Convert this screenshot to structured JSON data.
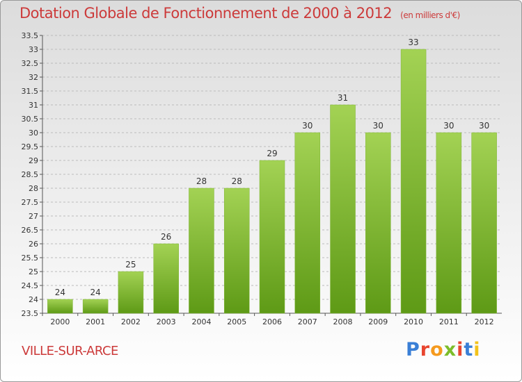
{
  "title": "Dotation Globale de Fonctionnement de 2000 à 2012",
  "subtitle": "(en milliers d'€)",
  "commune": "VILLE-SUR-ARCE",
  "logo": {
    "text": "Proxiti",
    "letter_colors": [
      "#3a7fd6",
      "#e8452f",
      "#f59a1e",
      "#7cbd2a",
      "#e8452f",
      "#3a7fd6",
      "#f2c21b"
    ]
  },
  "colors": {
    "title": "#cc3a3a",
    "bar_top": "#a3d254",
    "bar_bottom": "#5e9a16",
    "grid": "#bbbbbb"
  },
  "chart_data": {
    "type": "bar",
    "title": "Dotation Globale de Fonctionnement de 2000 à 2012",
    "subtitle": "(en milliers d'€)",
    "categories": [
      "2000",
      "2001",
      "2002",
      "2003",
      "2004",
      "2005",
      "2006",
      "2007",
      "2008",
      "2009",
      "2010",
      "2011",
      "2012"
    ],
    "values": [
      24,
      24,
      25,
      26,
      28,
      28,
      29,
      30,
      31,
      30,
      33,
      30,
      30
    ],
    "ylim": [
      23.5,
      33.5
    ],
    "yticks": [
      "23.5",
      "24",
      "24.5",
      "25",
      "25.5",
      "26",
      "26.5",
      "27",
      "27.5",
      "28",
      "28.5",
      "29",
      "29.5",
      "30",
      "30.5",
      "31",
      "31.5",
      "32",
      "32.5",
      "33",
      "33.5"
    ],
    "grid": true,
    "xlabel": "",
    "ylabel": ""
  }
}
